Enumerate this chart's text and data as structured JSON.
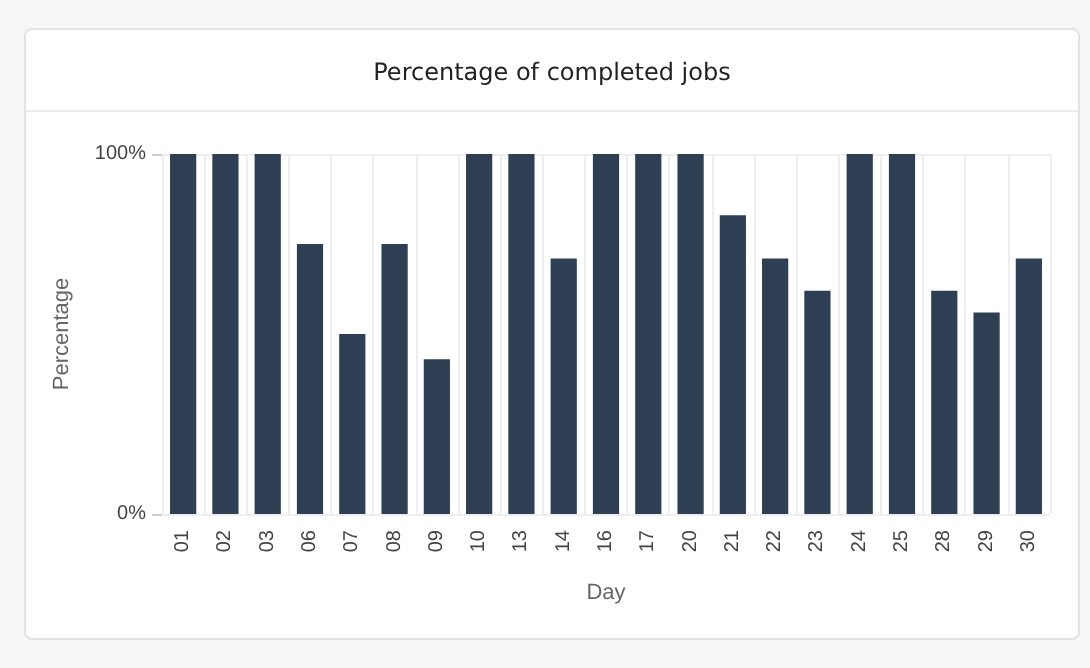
{
  "chart_data": {
    "type": "bar",
    "title": "Percentage of completed jobs",
    "xlabel": "Day",
    "ylabel": "Percentage",
    "categories": [
      "01",
      "02",
      "03",
      "06",
      "07",
      "08",
      "09",
      "10",
      "13",
      "14",
      "16",
      "17",
      "20",
      "21",
      "22",
      "23",
      "24",
      "25",
      "28",
      "29",
      "30"
    ],
    "values": [
      100,
      100,
      100,
      75,
      50,
      75,
      43,
      100,
      100,
      71,
      100,
      100,
      100,
      83,
      71,
      62,
      100,
      100,
      62,
      56,
      71
    ],
    "color": "#2e3f53",
    "ylim": [
      0,
      100
    ],
    "yticks": [
      {
        "value": 0,
        "label": "0%"
      },
      {
        "value": 100,
        "label": "100%"
      }
    ],
    "grid": true
  }
}
